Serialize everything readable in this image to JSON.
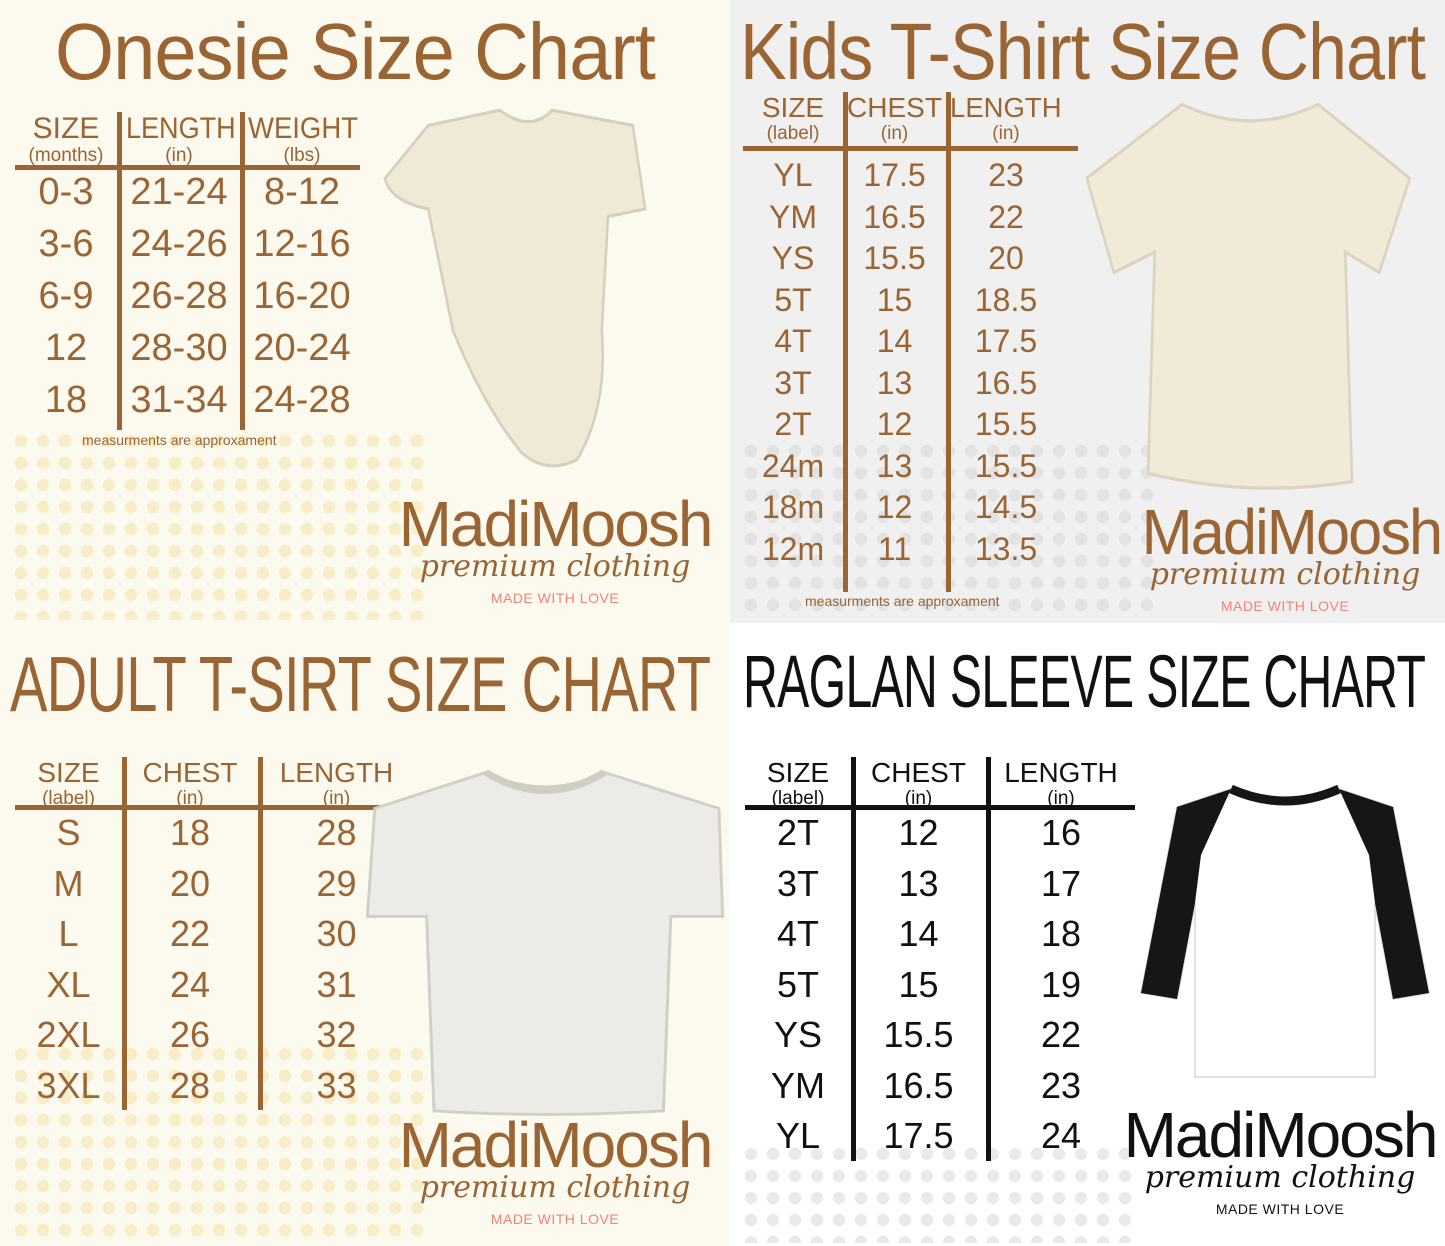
{
  "colors": {
    "brown": "#9a6433",
    "black": "#111111",
    "love": "#f08478"
  },
  "charts": [
    {
      "title": "Onesie Size Chart",
      "headers": [
        [
          "SIZE",
          "(months)"
        ],
        [
          "LENGTH",
          "(in)"
        ],
        [
          "WEIGHT",
          "(lbs)"
        ]
      ],
      "rows": [
        [
          "0-3",
          "21-24",
          "8-12"
        ],
        [
          "3-6",
          "24-26",
          "12-16"
        ],
        [
          "6-9",
          "26-28",
          "16-20"
        ],
        [
          "12",
          "28-30",
          "20-24"
        ],
        [
          "18",
          "31-34",
          "24-28"
        ]
      ],
      "note": "measurments are approxament",
      "garment": "onesie-image"
    },
    {
      "title": "Kids T-Shirt Size Chart",
      "headers": [
        [
          "SIZE",
          "(label)"
        ],
        [
          "CHEST",
          "(in)"
        ],
        [
          "LENGTH",
          "(in)"
        ]
      ],
      "rows": [
        [
          "YL",
          "17.5",
          "23"
        ],
        [
          "YM",
          "16.5",
          "22"
        ],
        [
          "YS",
          "15.5",
          "20"
        ],
        [
          "5T",
          "15",
          "18.5"
        ],
        [
          "4T",
          "14",
          "17.5"
        ],
        [
          "3T",
          "13",
          "16.5"
        ],
        [
          "2T",
          "12",
          "15.5"
        ],
        [
          "24m",
          "13",
          "15.5"
        ],
        [
          "18m",
          "12",
          "14.5"
        ],
        [
          "12m",
          "11",
          "13.5"
        ]
      ],
      "note": "measurments are approxament",
      "garment": "kids-tshirt-image"
    },
    {
      "title": "ADULT T-SIRT SIZE CHART",
      "headers": [
        [
          "SIZE",
          "(label)"
        ],
        [
          "CHEST",
          "(in)"
        ],
        [
          "LENGTH",
          "(in)"
        ]
      ],
      "rows": [
        [
          "S",
          "18",
          "28"
        ],
        [
          "M",
          "20",
          "29"
        ],
        [
          "L",
          "22",
          "30"
        ],
        [
          "XL",
          "24",
          "31"
        ],
        [
          "2XL",
          "26",
          "32"
        ],
        [
          "3XL",
          "28",
          "33"
        ]
      ],
      "garment": "adult-tshirt-image"
    },
    {
      "title": "RAGLAN SLEEVE SIZE CHART",
      "headers": [
        [
          "SIZE",
          "(label)"
        ],
        [
          "CHEST",
          "(in)"
        ],
        [
          "LENGTH",
          "(in)"
        ]
      ],
      "rows": [
        [
          "2T",
          "12",
          "16"
        ],
        [
          "3T",
          "13",
          "17"
        ],
        [
          "4T",
          "14",
          "18"
        ],
        [
          "5T",
          "15",
          "19"
        ],
        [
          "YS",
          "15.5",
          "22"
        ],
        [
          "YM",
          "16.5",
          "23"
        ],
        [
          "YL",
          "17.5",
          "24"
        ]
      ],
      "garment": "raglan-shirt-image"
    }
  ],
  "brand": {
    "name": "MadiMoosh",
    "tagline": "premium clothing",
    "slogan": "MADE WITH LOVE"
  }
}
